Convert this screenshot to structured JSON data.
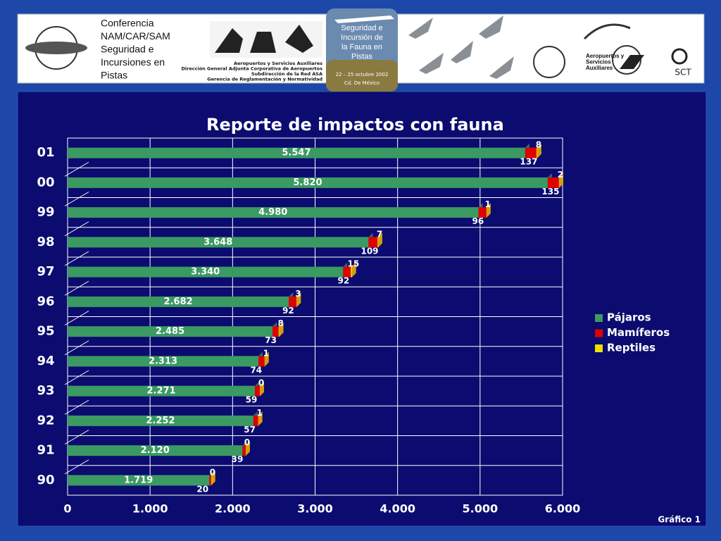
{
  "header": {
    "conference": [
      "Conferencia",
      "NAM/CAR/SAM",
      "Seguridad e",
      "Incursiones en",
      "Pistas"
    ],
    "org_lines": [
      "Aeropuertos y Servicios Auxiliares",
      "Dirección General Adjunta Corporativa de Aeropuertos",
      "Subdirección de la Red ASA",
      "Gerencia de Reglamentación y Normatividad"
    ],
    "event_title": [
      "Seguridad e",
      "Incursión de",
      "la Fauna en",
      "Pistas"
    ],
    "event_dates": "22 – 25 octubre 2002",
    "event_place": "Cd. De México",
    "asa": [
      "Aeropuertos y",
      "Servicios",
      "Auxiliares"
    ],
    "sct": "SCT"
  },
  "chart_data": {
    "type": "stacked_barh",
    "title": "Reporte de impactos con fauna",
    "categories": [
      "01",
      "00",
      "99",
      "98",
      "97",
      "96",
      "95",
      "94",
      "93",
      "92",
      "91",
      "90"
    ],
    "series": [
      {
        "name": "Pájaros",
        "color": "#3a9a62",
        "values": [
          5547,
          5820,
          4980,
          3648,
          3340,
          2682,
          2485,
          2313,
          2271,
          2252,
          2120,
          1719
        ],
        "value_labels": [
          "5.547",
          "5.820",
          "4.980",
          "3.648",
          "3.340",
          "2.682",
          "2.485",
          "2.313",
          "2.271",
          "2.252",
          "2.120",
          "1.719"
        ]
      },
      {
        "name": "Mamíferos",
        "color": "#e00000",
        "values": [
          137,
          135,
          96,
          109,
          92,
          92,
          73,
          74,
          59,
          57,
          39,
          20
        ]
      },
      {
        "name": "Reptiles",
        "color": "#f0e000",
        "values": [
          8,
          2,
          1,
          7,
          15,
          3,
          8,
          1,
          0,
          1,
          0,
          0
        ]
      }
    ],
    "xlim": [
      0,
      6000
    ],
    "xticks": [
      0,
      {
        "value": 1000,
        "label": "1.000"
      },
      {
        "value": 2000,
        "label": "2.000"
      },
      {
        "value": 3000,
        "label": "3.000"
      },
      {
        "value": 4000,
        "label": "4.000"
      },
      {
        "value": 5000,
        "label": "5.000"
      },
      {
        "value": 6000,
        "label": "6.000"
      }
    ],
    "grid": true,
    "legend": "right",
    "footer": "Gráfico 1"
  }
}
